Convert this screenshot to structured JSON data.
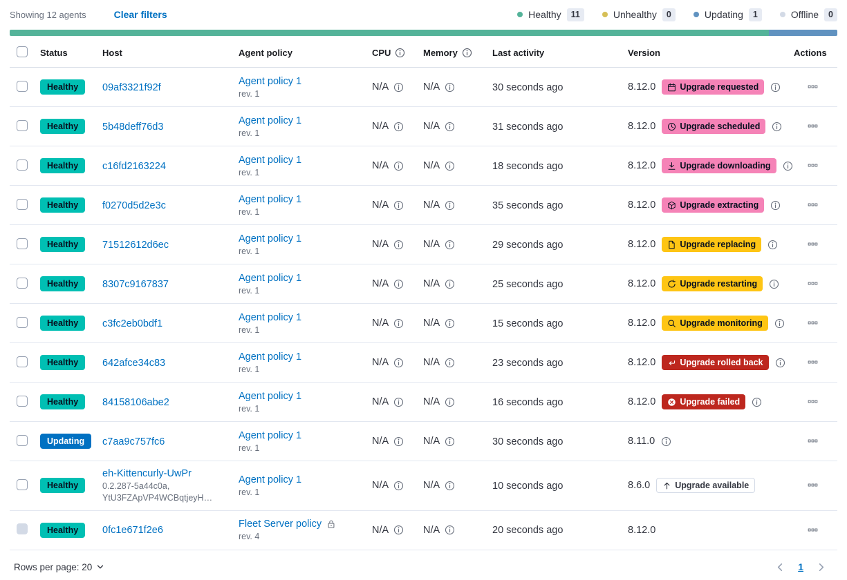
{
  "colors": {
    "link": "#0071c2",
    "text": "#343741",
    "badge_healthy": "#00bfb3",
    "badge_updating": "#0071c2",
    "badge_pink": "#f583b7",
    "badge_yellow": "#fec514",
    "badge_red": "#bd271e",
    "bar_green": "#54b399",
    "bar_blue": "#6092c0"
  },
  "toolbar": {
    "showing_text": "Showing 12 agents",
    "clear_filters_label": "Clear filters",
    "legend": [
      {
        "label": "Healthy",
        "count": "11",
        "dot_color": "#54b399"
      },
      {
        "label": "Unhealthy",
        "count": "0",
        "dot_color": "#d6bf57"
      },
      {
        "label": "Updating",
        "count": "1",
        "dot_color": "#6092c0"
      },
      {
        "label": "Offline",
        "count": "0",
        "dot_color": "#d3dae6"
      }
    ]
  },
  "health_bar": {
    "segments": [
      {
        "status": "healthy",
        "color": "#54b399",
        "percent": 91.7
      },
      {
        "status": "updating",
        "color": "#6092c0",
        "percent": 8.3
      }
    ]
  },
  "table": {
    "columns": [
      "Status",
      "Host",
      "Agent policy",
      "CPU",
      "Memory",
      "Last activity",
      "Version",
      "Actions"
    ]
  },
  "agents": [
    {
      "status": "Healthy",
      "host": "09af3321f92f",
      "policy": "Agent policy 1",
      "policy_rev": "rev. 1",
      "cpu": "N/A",
      "memory": "N/A",
      "last_activity": "30 seconds ago",
      "version": "8.12.0",
      "upgrade_badge": {
        "label": "Upgrade requested",
        "icon": "calendar-icon",
        "style": "pink"
      },
      "version_info": true
    },
    {
      "status": "Healthy",
      "host": "5b48deff76d3",
      "policy": "Agent policy 1",
      "policy_rev": "rev. 1",
      "cpu": "N/A",
      "memory": "N/A",
      "last_activity": "31 seconds ago",
      "version": "8.12.0",
      "upgrade_badge": {
        "label": "Upgrade scheduled",
        "icon": "clock-icon",
        "style": "pink"
      },
      "version_info": true
    },
    {
      "status": "Healthy",
      "host": "c16fd2163224",
      "policy": "Agent policy 1",
      "policy_rev": "rev. 1",
      "cpu": "N/A",
      "memory": "N/A",
      "last_activity": "18 seconds ago",
      "version": "8.12.0",
      "upgrade_badge": {
        "label": "Upgrade downloading",
        "icon": "download-icon",
        "style": "pink"
      },
      "version_info": true
    },
    {
      "status": "Healthy",
      "host": "f0270d5d2e3c",
      "policy": "Agent policy 1",
      "policy_rev": "rev. 1",
      "cpu": "N/A",
      "memory": "N/A",
      "last_activity": "35 seconds ago",
      "version": "8.12.0",
      "upgrade_badge": {
        "label": "Upgrade extracting",
        "icon": "package-icon",
        "style": "pink"
      },
      "version_info": true
    },
    {
      "status": "Healthy",
      "host": "71512612d6ec",
      "policy": "Agent policy 1",
      "policy_rev": "rev. 1",
      "cpu": "N/A",
      "memory": "N/A",
      "last_activity": "29 seconds ago",
      "version": "8.12.0",
      "upgrade_badge": {
        "label": "Upgrade replacing",
        "icon": "document-icon",
        "style": "yellow"
      },
      "version_info": true
    },
    {
      "status": "Healthy",
      "host": "8307c9167837",
      "policy": "Agent policy 1",
      "policy_rev": "rev. 1",
      "cpu": "N/A",
      "memory": "N/A",
      "last_activity": "25 seconds ago",
      "version": "8.12.0",
      "upgrade_badge": {
        "label": "Upgrade restarting",
        "icon": "refresh-icon",
        "style": "yellow"
      },
      "version_info": true
    },
    {
      "status": "Healthy",
      "host": "c3fc2eb0bdf1",
      "policy": "Agent policy 1",
      "policy_rev": "rev. 1",
      "cpu": "N/A",
      "memory": "N/A",
      "last_activity": "15 seconds ago",
      "version": "8.12.0",
      "upgrade_badge": {
        "label": "Upgrade monitoring",
        "icon": "inspect-icon",
        "style": "yellow"
      },
      "version_info": true
    },
    {
      "status": "Healthy",
      "host": "642afce34c83",
      "policy": "Agent policy 1",
      "policy_rev": "rev. 1",
      "cpu": "N/A",
      "memory": "N/A",
      "last_activity": "23 seconds ago",
      "version": "8.12.0",
      "upgrade_badge": {
        "label": "Upgrade rolled back",
        "icon": "return-arrow-icon",
        "style": "red"
      },
      "version_info": true
    },
    {
      "status": "Healthy",
      "host": "84158106abe2",
      "policy": "Agent policy 1",
      "policy_rev": "rev. 1",
      "cpu": "N/A",
      "memory": "N/A",
      "last_activity": "16 seconds ago",
      "version": "8.12.0",
      "upgrade_badge": {
        "label": "Upgrade failed",
        "icon": "error-icon",
        "style": "red"
      },
      "version_info": true
    },
    {
      "status": "Updating",
      "host": "c7aa9c757fc6",
      "policy": "Agent policy 1",
      "policy_rev": "rev. 1",
      "cpu": "N/A",
      "memory": "N/A",
      "last_activity": "30 seconds ago",
      "version": "8.11.0",
      "upgrade_badge": null,
      "version_info": true
    },
    {
      "status": "Healthy",
      "host": "eh-Kittencurly-UwPr",
      "host_sub": [
        "0.2.287-5a44c0a,",
        "YtU3FZApVP4WCBqtjeyH…"
      ],
      "policy": "Agent policy 1",
      "policy_rev": "rev. 1",
      "cpu": "N/A",
      "memory": "N/A",
      "last_activity": "10 seconds ago",
      "version": "8.6.0",
      "upgrade_badge": {
        "label": "Upgrade available",
        "icon": "arrow-up-icon",
        "style": "hollow"
      },
      "version_info": false
    },
    {
      "status": "Healthy",
      "host": "0fc1e671f2e6",
      "policy": "Fleet Server policy",
      "policy_rev": "rev. 4",
      "policy_locked": true,
      "cpu": "N/A",
      "memory": "N/A",
      "last_activity": "20 seconds ago",
      "version": "8.12.0",
      "upgrade_badge": null,
      "version_info": false,
      "checkbox_disabled": true
    }
  ],
  "footer": {
    "rows_per_page_label": "Rows per page: 20",
    "pagination": {
      "current_page": "1"
    }
  }
}
